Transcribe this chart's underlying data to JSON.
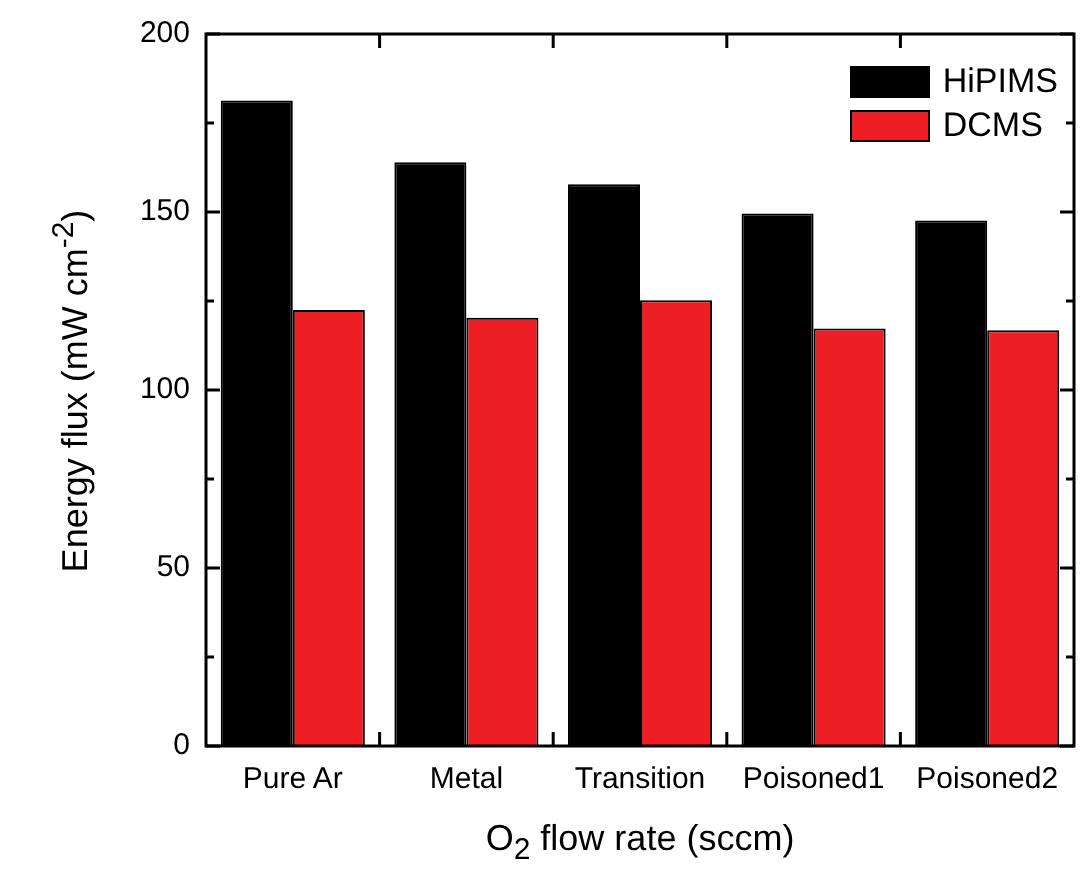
{
  "chart_data": {
    "type": "bar",
    "xlabel": "O$_{2}$ flow rate (sccm)",
    "ylabel": "Energy flux (mW cm$^{-2}$)",
    "categories": [
      "Pure Ar",
      "Metal",
      "Transition",
      "Poisoned1",
      "Poisoned2"
    ],
    "series": [
      {
        "name": "HiPIMS",
        "color": "#000000",
        "values": [
          181.3,
          164,
          157.8,
          149.6,
          147.6
        ]
      },
      {
        "name": "DCMS",
        "color": "#ed1f24",
        "values": [
          122.5,
          120.3,
          125.2,
          117.3,
          116.8
        ]
      }
    ],
    "ylim": [
      0,
      200
    ],
    "yticks": [
      0,
      {
        "value": 25,
        "label": null
      },
      50,
      {
        "value": 75,
        "label": null
      },
      100,
      {
        "value": 125,
        "label": null
      },
      150,
      {
        "value": 175,
        "label": null
      },
      200
    ],
    "grid": false,
    "legend": "top right"
  }
}
